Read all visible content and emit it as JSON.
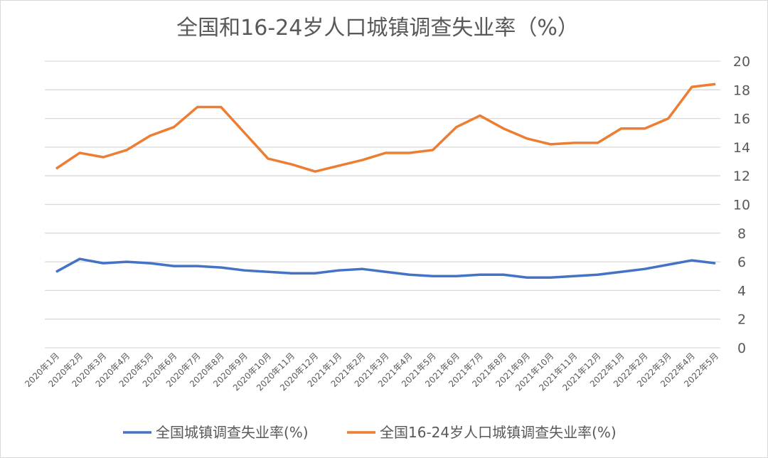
{
  "chart_data": {
    "type": "line",
    "title": "全国和16-24岁人口城镇调查失业率（%）",
    "categories": [
      "2020年1月",
      "2020年2月",
      "2020年3月",
      "2020年4月",
      "2020年5月",
      "2020年6月",
      "2020年7月",
      "2020年8月",
      "2020年9月",
      "2020年10月",
      "2020年11月",
      "2020年12月",
      "2021年1月",
      "2021年2月",
      "2021年3月",
      "2021年4月",
      "2021年5月",
      "2021年6月",
      "2021年7月",
      "2021年8月",
      "2021年9月",
      "2021年10月",
      "2021年11月",
      "2021年12月",
      "2022年1月",
      "2022年2月",
      "2022年3月",
      "2022年4月",
      "2022年5月"
    ],
    "series": [
      {
        "name": "全国城镇调查失业率(%)",
        "color": "#4472c4",
        "values": [
          5.3,
          6.2,
          5.9,
          6.0,
          5.9,
          5.7,
          5.7,
          5.6,
          5.4,
          5.3,
          5.2,
          5.2,
          5.4,
          5.5,
          5.3,
          5.1,
          5.0,
          5.0,
          5.1,
          5.1,
          4.9,
          4.9,
          5.0,
          5.1,
          5.3,
          5.5,
          5.8,
          6.1,
          5.9
        ]
      },
      {
        "name": "全国16-24岁人口城镇调查失业率(%)",
        "color": "#ed7d31",
        "values": [
          12.5,
          13.6,
          13.3,
          13.8,
          14.8,
          15.4,
          16.8,
          16.8,
          15.0,
          13.2,
          12.8,
          12.3,
          12.7,
          13.1,
          13.6,
          13.6,
          13.8,
          15.4,
          16.2,
          15.3,
          14.6,
          14.2,
          14.3,
          14.3,
          15.3,
          15.3,
          16.0,
          18.2,
          18.4
        ]
      }
    ],
    "yticks": [
      "0",
      "2",
      "4",
      "6",
      "8",
      "10",
      "12",
      "14",
      "16",
      "18",
      "20"
    ],
    "ylim": [
      0,
      20
    ],
    "y_axis_side": "right",
    "grid": true,
    "legend": "bottom"
  }
}
